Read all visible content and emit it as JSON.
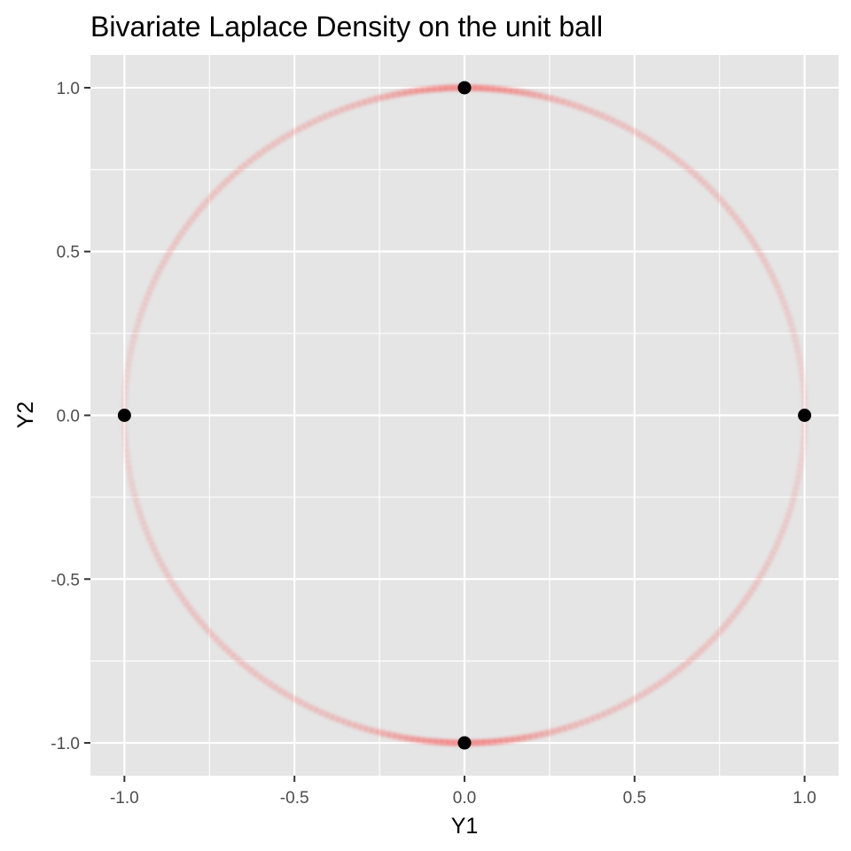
{
  "chart_data": {
    "type": "scatter",
    "title": "Bivariate Laplace Density on the unit ball",
    "xlabel": "Y1",
    "ylabel": "Y2",
    "xlim": [
      -1.1,
      1.1
    ],
    "ylim": [
      -1.1,
      1.1
    ],
    "x_ticks": [
      -1.0,
      -0.5,
      0.0,
      0.5,
      1.0
    ],
    "x_tick_labels": [
      "-1.0",
      "-0.5",
      "0.0",
      "0.5",
      "1.0"
    ],
    "y_ticks": [
      -1.0,
      -0.5,
      0.0,
      0.5,
      1.0
    ],
    "y_tick_labels": [
      "-1.0",
      "-0.5",
      "0.0",
      "0.5",
      "1.0"
    ],
    "grid": true,
    "legend": "none",
    "colors": {
      "panel": "#e5e5e5",
      "grid": "#ffffff",
      "density": "#f08080",
      "point": "#000000"
    },
    "series": [
      {
        "type": "density-ring",
        "description_values": {
          "radius": 1.0,
          "peak_angles_deg": [
            90,
            270
          ],
          "min_angles_deg": [
            0,
            180
          ]
        }
      },
      {
        "type": "points",
        "x": [
          0.0,
          1.0,
          0.0,
          -1.0
        ],
        "y": [
          1.0,
          0.0,
          -1.0,
          0.0
        ]
      }
    ]
  }
}
